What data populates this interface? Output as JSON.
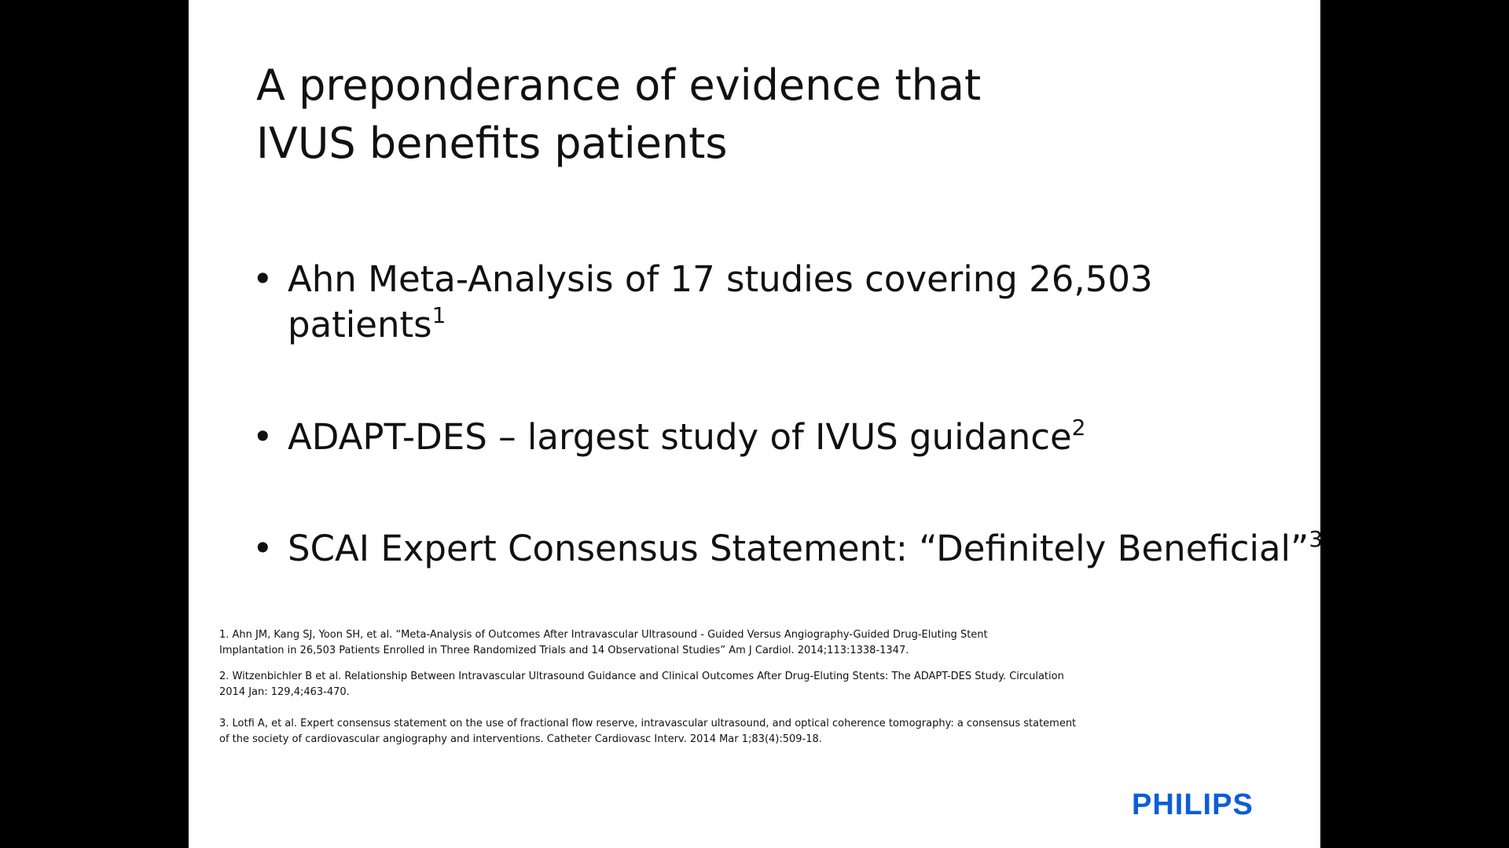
{
  "title": {
    "lines": [
      "A preponderance of evidence that",
      "IVUS benefits patients"
    ]
  },
  "bullets": [
    {
      "lines": [
        "Ahn Meta-Analysis of 17 studies covering 26,503",
        "patients"
      ],
      "sup": "1"
    },
    {
      "lines": [
        "ADAPT-DES – largest study of IVUS guidance"
      ],
      "sup": "2"
    },
    {
      "lines": [
        "SCAI Expert Consensus Statement: “Definitely Beneficial”"
      ],
      "sup": "3"
    }
  ],
  "references": [
    {
      "lines": [
        "1. Ahn JM, Kang SJ, Yoon SH, et al. “Meta-Analysis of Outcomes After Intravascular Ultrasound  - Guided Versus Angiography-Guided Drug-Eluting Stent",
        "Implantation in 26,503 Patients Enrolled in Three Randomized Trials and 14 Observational Studies” Am J Cardiol. 2014;113:1338-1347."
      ]
    },
    {
      "lines": [
        "2. Witzenbichler B et al. Relationship Between Intravascular Ultrasound Guidance and Clinical Outcomes After Drug-Eluting Stents: The ADAPT-DES Study. Circulation",
        "2014  Jan: 129,4;463-470."
      ]
    },
    {
      "lines": [
        "3.  Lotfi A, et al. Expert consensus statement on the use of fractional flow reserve, intravascular ultrasound, and optical coherence tomography: a consensus statement",
        "of the society of cardiovascular angiography and interventions. Catheter Cardiovasc Interv. 2014 Mar 1;83(4):509-18."
      ]
    }
  ],
  "logo": "PHILIPS"
}
